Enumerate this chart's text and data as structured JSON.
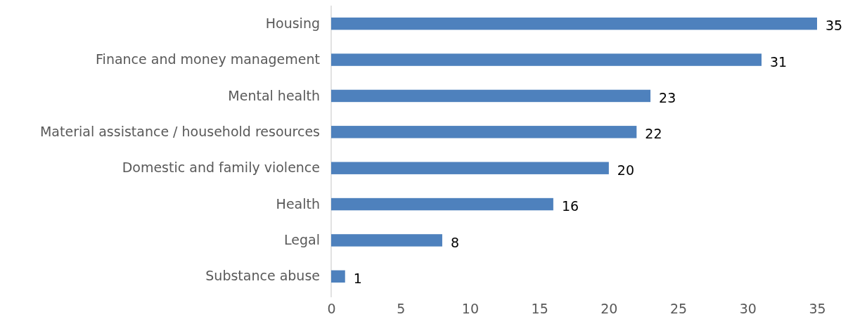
{
  "chart_data": {
    "type": "bar",
    "orientation": "horizontal",
    "categories": [
      "Housing",
      "Finance and money management",
      "Mental health",
      "Material assistance / household resources",
      "Domestic and family violence",
      "Health",
      "Legal",
      "Substance abuse"
    ],
    "values": [
      35,
      31,
      23,
      22,
      20,
      16,
      8,
      1
    ],
    "color": "#4e81bd",
    "xlim": [
      0,
      35
    ],
    "xticks": [
      0,
      5,
      10,
      15,
      20,
      25,
      30,
      35
    ],
    "grid": false,
    "data_labels": true
  }
}
